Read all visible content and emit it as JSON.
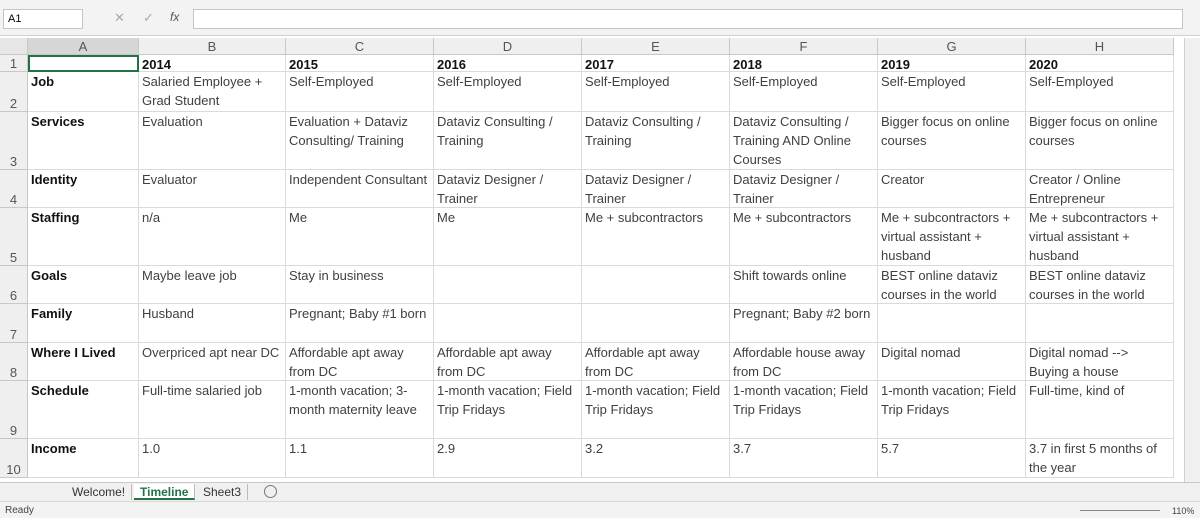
{
  "name_box": "A1",
  "formula_icon": "fx",
  "column_headers": [
    "A",
    "B",
    "C",
    "D",
    "E",
    "F",
    "G",
    "H"
  ],
  "header_row": {
    "number": "1",
    "years": [
      "2014",
      "2015",
      "2016",
      "2017",
      "2018",
      "2019",
      "2020"
    ]
  },
  "rows": [
    {
      "number": "2",
      "label": "Job",
      "cells": [
        "Salaried Employee + Grad Student",
        "Self-Employed",
        "Self-Employed",
        "Self-Employed",
        "Self-Employed",
        "Self-Employed",
        "Self-Employed"
      ]
    },
    {
      "number": "3",
      "label": "Services",
      "cells": [
        "Evaluation",
        "Evaluation + Dataviz Consulting/ Training",
        "Dataviz Consulting / Training",
        "Dataviz Consulting / Training",
        "Dataviz Consulting / Training AND Online Courses",
        "Bigger focus on online courses",
        "Bigger focus on online courses"
      ]
    },
    {
      "number": "4",
      "label": "Identity",
      "cells": [
        "Evaluator",
        "Independent Consultant",
        "Dataviz Designer / Trainer",
        "Dataviz Designer / Trainer",
        "Dataviz Designer / Trainer",
        "Creator",
        "Creator / Online Entrepreneur"
      ]
    },
    {
      "number": "5",
      "label": "Staffing",
      "cells": [
        "n/a",
        "Me",
        "Me",
        "Me + subcontractors",
        "Me + subcontractors",
        "Me + subcontractors + virtual assistant + husband",
        "Me + subcontractors + virtual assistant + husband"
      ]
    },
    {
      "number": "6",
      "label": "Goals",
      "cells": [
        "Maybe leave job",
        "Stay in business",
        null,
        null,
        "Shift towards online",
        "BEST online dataviz courses in the world",
        "BEST online dataviz courses in the world"
      ]
    },
    {
      "number": "7",
      "label": "Family",
      "cells": [
        "Husband",
        "Pregnant; Baby #1 born",
        null,
        null,
        "Pregnant; Baby #2 born",
        null,
        null
      ]
    },
    {
      "number": "8",
      "label": "Where I Lived",
      "cells": [
        "Overpriced apt near DC",
        "Affordable apt away from DC",
        "Affordable apt away from DC",
        "Affordable apt away from DC",
        "Affordable house away from DC",
        "Digital nomad",
        "Digital nomad --> Buying a house"
      ]
    },
    {
      "number": "9",
      "label": "Schedule",
      "cells": [
        "Full-time salaried job",
        "1-month vacation; 3-month maternity leave",
        "1-month vacation; Field Trip Fridays",
        "1-month vacation; Field Trip Fridays",
        "1-month vacation; Field Trip Fridays",
        "1-month vacation; Field Trip Fridays",
        "Full-time, kind of"
      ]
    },
    {
      "number": "10",
      "label": "Income",
      "cells": [
        "1.0",
        "1.1",
        "2.9",
        "3.2",
        "3.7",
        "5.7",
        "3.7 in first 5 months of the year"
      ]
    }
  ],
  "sheet_tabs": [
    "Welcome!",
    "Timeline",
    "Sheet3"
  ],
  "status": "Ready",
  "zoom": "110%"
}
